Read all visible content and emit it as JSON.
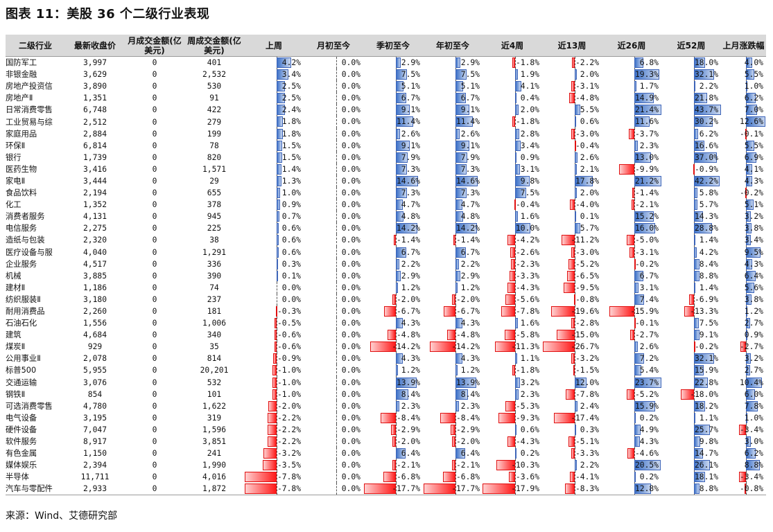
{
  "title": "图表 11：美股 36 个二级行业表现",
  "source": "来源：Wind、艾德研究部",
  "colors": {
    "positive_bar": "#3f73c9",
    "negative_bar": "#ff1a1a",
    "header_bg": "#d9d9d9"
  },
  "headers": [
    "二级行业",
    "最新收盘价",
    "月成交金额(亿美元)",
    "周成交金额(亿美元)",
    "上周",
    "月初至今",
    "季初至今",
    "年初至今",
    "近4周",
    "近13周",
    "近26周",
    "近52周",
    "上月涨跌幅"
  ],
  "scales": [
    null,
    null,
    null,
    null,
    8,
    1,
    18,
    18,
    18,
    27,
    21,
    44,
    13
  ],
  "rows": [
    [
      "国防军工",
      "3,997",
      "0",
      "401",
      "4.2%",
      "0.0%",
      "2.9%",
      "2.9%",
      "-1.8%",
      "-2.2%",
      "6.8%",
      "18.0%",
      "4.0%"
    ],
    [
      "非银金融",
      "3,629",
      "0",
      "2,532",
      "3.4%",
      "0.0%",
      "7.5%",
      "7.5%",
      "1.9%",
      "2.0%",
      "19.3%",
      "32.1%",
      "5.5%"
    ],
    [
      "房地产投资信",
      "3,890",
      "0",
      "530",
      "2.5%",
      "0.0%",
      "5.1%",
      "5.1%",
      "4.1%",
      "-3.1%",
      "1.7%",
      "2.2%",
      "1.0%"
    ],
    [
      "房地产Ⅱ",
      "1,351",
      "0",
      "91",
      "2.5%",
      "0.0%",
      "6.7%",
      "6.7%",
      "0.4%",
      "-4.8%",
      "14.9%",
      "21.8%",
      "6.2%"
    ],
    [
      "日常消费零售",
      "6,748",
      "0",
      "422",
      "2.4%",
      "0.0%",
      "9.1%",
      "9.1%",
      "2.0%",
      "5.5%",
      "21.4%",
      "43.7%",
      "7.0%"
    ],
    [
      "工业贸易与综",
      "2,512",
      "0",
      "279",
      "1.8%",
      "0.0%",
      "11.4%",
      "11.4%",
      "-1.8%",
      "0.6%",
      "11.6%",
      "30.2%",
      "12.6%"
    ],
    [
      "家庭用品",
      "2,884",
      "0",
      "199",
      "1.8%",
      "0.0%",
      "2.6%",
      "2.6%",
      "2.8%",
      "-3.0%",
      "-3.7%",
      "6.2%",
      "-0.1%"
    ],
    [
      "环保Ⅱ",
      "6,814",
      "0",
      "78",
      "1.5%",
      "0.0%",
      "9.1%",
      "9.1%",
      "3.4%",
      "-0.4%",
      "2.3%",
      "16.6%",
      "5.5%"
    ],
    [
      "银行",
      "1,739",
      "0",
      "820",
      "1.5%",
      "0.0%",
      "7.9%",
      "7.9%",
      "0.9%",
      "2.6%",
      "13.0%",
      "37.0%",
      "6.9%"
    ],
    [
      "医药生物",
      "3,416",
      "0",
      "1,571",
      "1.4%",
      "0.0%",
      "7.3%",
      "7.3%",
      "3.1%",
      "2.1%",
      "-9.9%",
      "-0.9%",
      "4.1%"
    ],
    [
      "家电Ⅱ",
      "3,444",
      "0",
      "29",
      "1.3%",
      "0.0%",
      "14.6%",
      "14.6%",
      "9.8%",
      "17.8%",
      "21.2%",
      "42.2%",
      "4.3%"
    ],
    [
      "食品饮料",
      "2,194",
      "0",
      "655",
      "1.0%",
      "0.0%",
      "7.3%",
      "7.3%",
      "7.5%",
      "2.0%",
      "-1.4%",
      "5.8%",
      "-0.2%"
    ],
    [
      "化工",
      "1,352",
      "0",
      "378",
      "0.9%",
      "0.0%",
      "4.7%",
      "4.7%",
      "-0.4%",
      "-4.0%",
      "-2.1%",
      "5.7%",
      "5.1%"
    ],
    [
      "消费者服务",
      "4,131",
      "0",
      "945",
      "0.7%",
      "0.0%",
      "4.8%",
      "4.8%",
      "1.6%",
      "0.1%",
      "15.2%",
      "14.3%",
      "3.2%"
    ],
    [
      "电信服务",
      "2,275",
      "0",
      "225",
      "0.6%",
      "0.0%",
      "14.2%",
      "14.2%",
      "10.0%",
      "5.7%",
      "16.0%",
      "28.8%",
      "3.8%"
    ],
    [
      "造纸与包装",
      "2,320",
      "0",
      "38",
      "0.6%",
      "0.0%",
      "-1.4%",
      "-1.4%",
      "-4.2%",
      "-11.2%",
      "-5.0%",
      "1.4%",
      "3.4%"
    ],
    [
      "医疗设备与服",
      "4,040",
      "0",
      "1,291",
      "0.6%",
      "0.0%",
      "6.7%",
      "6.7%",
      "-2.6%",
      "-3.0%",
      "-3.1%",
      "4.2%",
      "9.5%"
    ],
    [
      "企业服务",
      "4,517",
      "0",
      "336",
      "0.3%",
      "0.0%",
      "2.2%",
      "2.2%",
      "-2.3%",
      "-5.2%",
      "-0.2%",
      "8.4%",
      "4.3%"
    ],
    [
      "机械",
      "3,885",
      "0",
      "390",
      "0.1%",
      "0.0%",
      "2.9%",
      "2.9%",
      "-3.3%",
      "-6.5%",
      "6.7%",
      "8.8%",
      "6.4%"
    ],
    [
      "建材Ⅱ",
      "1,186",
      "0",
      "74",
      "0.0%",
      "0.0%",
      "1.2%",
      "1.2%",
      "-4.3%",
      "-9.5%",
      "3.1%",
      "1.4%",
      "5.6%"
    ],
    [
      "纺织服装Ⅱ",
      "3,180",
      "0",
      "237",
      "0.0%",
      "0.0%",
      "-2.0%",
      "-2.0%",
      "-5.6%",
      "-0.8%",
      "7.4%",
      "-6.9%",
      "3.8%"
    ],
    [
      "耐用消费品",
      "2,260",
      "0",
      "181",
      "-0.3%",
      "0.0%",
      "-6.7%",
      "-6.7%",
      "-7.8%",
      "-19.6%",
      "-15.9%",
      "-13.3%",
      "1.2%"
    ],
    [
      "石油石化",
      "1,556",
      "0",
      "1,006",
      "-0.5%",
      "0.0%",
      "4.3%",
      "4.3%",
      "1.6%",
      "-2.8%",
      "-0.1%",
      "7.5%",
      "2.7%"
    ],
    [
      "建筑",
      "4,684",
      "0",
      "340",
      "-0.6%",
      "0.0%",
      "-4.8%",
      "-4.8%",
      "-5.8%",
      "-15.0%",
      "-2.7%",
      "9.1%",
      "0.9%"
    ],
    [
      "煤炭Ⅱ",
      "929",
      "0",
      "35",
      "-0.6%",
      "0.0%",
      "-14.2%",
      "-14.2%",
      "-11.3%",
      "-26.7%",
      "2.6%",
      "-0.2%",
      "-2.7%"
    ],
    [
      "公用事业Ⅱ",
      "2,078",
      "0",
      "814",
      "-0.9%",
      "0.0%",
      "4.3%",
      "4.3%",
      "1.1%",
      "-3.2%",
      "7.2%",
      "32.1%",
      "3.2%"
    ],
    [
      "标普500",
      "5,955",
      "0",
      "20,201",
      "-1.0%",
      "0.0%",
      "1.2%",
      "1.2%",
      "-1.8%",
      "-1.5%",
      "5.4%",
      "15.9%",
      "2.7%"
    ],
    [
      "交通运输",
      "3,076",
      "0",
      "532",
      "-1.0%",
      "0.0%",
      "13.9%",
      "13.9%",
      "3.2%",
      "12.0%",
      "23.7%",
      "22.8%",
      "10.4%"
    ],
    [
      "钢铁Ⅱ",
      "854",
      "0",
      "101",
      "-1.0%",
      "0.0%",
      "8.4%",
      "8.4%",
      "2.3%",
      "-7.8%",
      "-5.2%",
      "-18.0%",
      "6.0%"
    ],
    [
      "可选消费零售",
      "4,780",
      "0",
      "1,622",
      "-2.0%",
      "0.0%",
      "2.3%",
      "2.3%",
      "-5.3%",
      "2.4%",
      "15.9%",
      "18.2%",
      "7.8%"
    ],
    [
      "电气设备",
      "3,195",
      "0",
      "319",
      "-2.2%",
      "0.0%",
      "-8.4%",
      "-8.4%",
      "-9.3%",
      "-17.4%",
      "0.2%",
      "1.1%",
      "1.0%"
    ],
    [
      "硬件设备",
      "7,047",
      "0",
      "1,596",
      "-2.2%",
      "0.0%",
      "-2.9%",
      "-2.9%",
      "0.6%",
      "0.3%",
      "4.9%",
      "25.7%",
      "-3.4%"
    ],
    [
      "软件服务",
      "8,917",
      "0",
      "3,851",
      "-2.2%",
      "0.0%",
      "-2.0%",
      "-2.0%",
      "-4.3%",
      "-5.1%",
      "4.3%",
      "9.8%",
      "3.0%"
    ],
    [
      "有色金属",
      "1,150",
      "0",
      "241",
      "-3.2%",
      "0.0%",
      "6.4%",
      "6.4%",
      "0.2%",
      "-3.3%",
      "-4.6%",
      "14.7%",
      "6.2%"
    ],
    [
      "媒体娱乐",
      "2,394",
      "0",
      "1,990",
      "-3.5%",
      "0.0%",
      "-2.1%",
      "-2.1%",
      "-10.3%",
      "2.2%",
      "20.5%",
      "26.1%",
      "8.8%"
    ],
    [
      "半导体",
      "11,711",
      "0",
      "4,016",
      "-7.8%",
      "0.0%",
      "-6.8%",
      "-6.8%",
      "-3.6%",
      "-4.1%",
      "0.2%",
      "18.1%",
      "-3.4%"
    ],
    [
      "汽车与零配件",
      "2,933",
      "0",
      "1,872",
      "-7.8%",
      "0.0%",
      "-17.7%",
      "-17.7%",
      "-17.9%",
      "-8.3%",
      "12.8%",
      "8.8%",
      "-0.8%"
    ]
  ]
}
